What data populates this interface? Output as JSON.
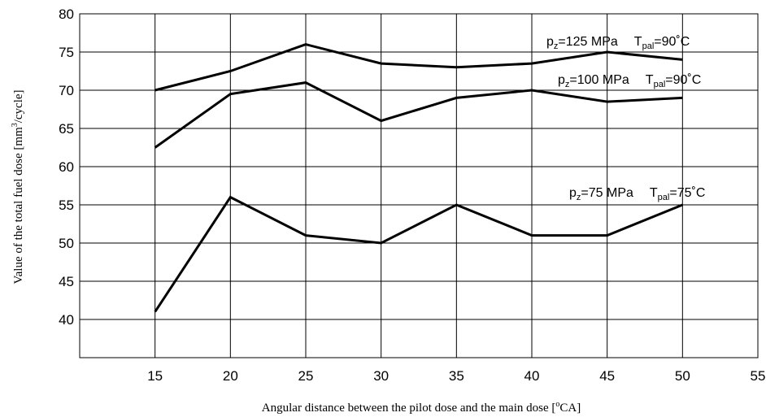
{
  "chart_data": {
    "type": "line",
    "xlabel": {
      "pre": "Angular distance between the pilot dose and the main dose [",
      "sup": "o",
      "post": "CA]"
    },
    "ylabel": {
      "pre": "Value of the total fuel dose [mm",
      "sup": "3",
      "post": "/cycle]"
    },
    "xlim": [
      10,
      55
    ],
    "ylim": [
      35,
      80
    ],
    "x_ticks": [
      "15",
      "20",
      "25",
      "30",
      "35",
      "40",
      "45",
      "50",
      "55"
    ],
    "y_ticks": [
      "40",
      "45",
      "50",
      "55",
      "60",
      "65",
      "70",
      "75",
      "80"
    ],
    "grid": true,
    "x": [
      15,
      20,
      25,
      30,
      35,
      40,
      45,
      50
    ],
    "series": [
      {
        "label": {
          "p_sub": "z",
          "p_val": "=125 MPa",
          "t_sub": "pal",
          "t_val": "=90˚C"
        },
        "values": [
          70,
          72.5,
          76,
          73.5,
          73,
          73.5,
          75,
          74
        ]
      },
      {
        "label": {
          "p_sub": "z",
          "p_val": "=100 MPa",
          "t_sub": "pal",
          "t_val": "=90˚C"
        },
        "values": [
          62.5,
          69.5,
          71,
          66,
          69,
          70,
          68.5,
          69
        ]
      },
      {
        "label": {
          "p_sub": "z",
          "p_val": "=75 MPa",
          "t_sub": "pal",
          "t_val": "=75˚C"
        },
        "values": [
          41,
          56,
          51,
          50,
          55,
          51,
          51,
          55
        ]
      }
    ]
  }
}
